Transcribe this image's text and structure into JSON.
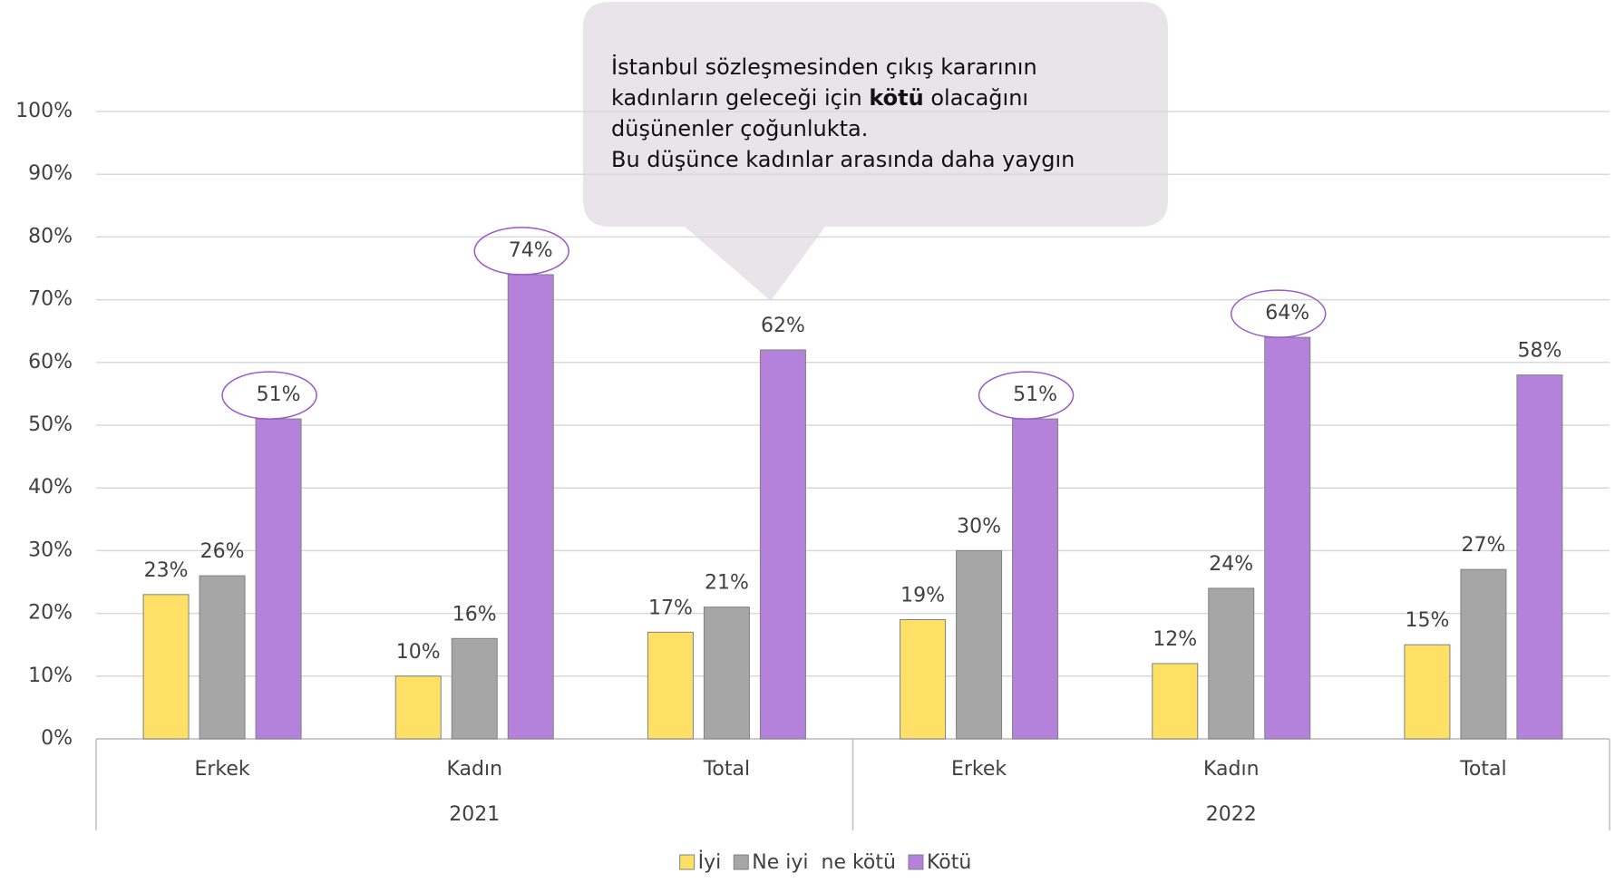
{
  "chart_data": {
    "type": "bar",
    "annotation": [
      "İstanbul sözleşmesinden çıkış kararının",
      [
        "kadınların geleceği için ",
        "kötü",
        " olacağını"
      ],
      "düşünenler çoğunlukta.",
      "Bu düşünce kadınlar arasında daha yaygın"
    ],
    "categories": [
      "Erkek",
      "Kadın",
      "Total",
      "Erkek",
      "Kadın",
      "Total"
    ],
    "groups": [
      "2021",
      "2022"
    ],
    "series": [
      {
        "name": "İyi",
        "color": "#ffe066",
        "values": [
          23,
          10,
          17,
          19,
          12,
          15
        ],
        "value_labels": [
          "23%",
          "10%",
          "17%",
          "19%",
          "12%",
          "15%"
        ]
      },
      {
        "name": "Ne iyi  ne kötü",
        "color": "#a6a6a6",
        "values": [
          26,
          16,
          21,
          30,
          24,
          27
        ],
        "value_labels": [
          "26%",
          "16%",
          "21%",
          "30%",
          "24%",
          "27%"
        ]
      },
      {
        "name": "Kötü",
        "color": "#b482da",
        "values": [
          51,
          74,
          62,
          51,
          64,
          58
        ],
        "value_labels": [
          "51%",
          "74%",
          "62%",
          "51%",
          "64%",
          "58%"
        ],
        "highlight": [
          true,
          true,
          false,
          true,
          true,
          false
        ]
      }
    ],
    "ylim": [
      0,
      100
    ],
    "yticks": [
      {
        "value": 0,
        "label": "0%"
      },
      {
        "value": 10,
        "label": "10%"
      },
      {
        "value": 20,
        "label": "20%"
      },
      {
        "value": 30,
        "label": "30%"
      },
      {
        "value": 40,
        "label": "40%"
      },
      {
        "value": 50,
        "label": "50%"
      },
      {
        "value": 60,
        "label": "60%"
      },
      {
        "value": 70,
        "label": "70%"
      },
      {
        "value": 80,
        "label": "80%"
      },
      {
        "value": 90,
        "label": "90%"
      },
      {
        "value": 100,
        "label": "100%"
      }
    ],
    "grid": true,
    "legend": "bottom"
  }
}
